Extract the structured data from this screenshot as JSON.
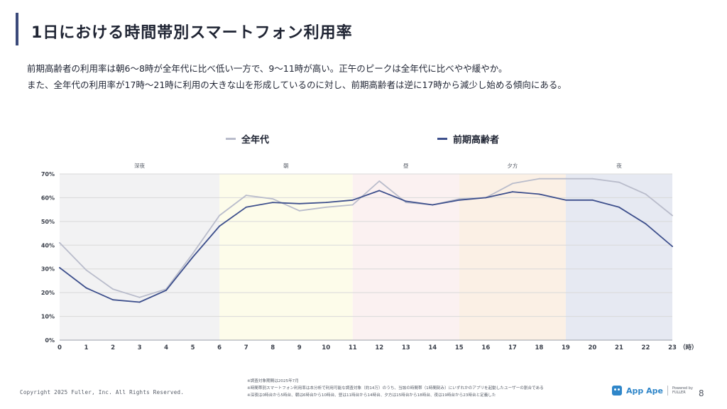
{
  "header": {
    "title": "1日における時間帯別スマートフォン利用率",
    "description_line1": "前期高齢者の利用率は朝6〜8時が全年代に比べ低い一方で、9〜11時が高い。正午のピークは全年代に比べやや緩やか。",
    "description_line2": "また、全年代の利用率が17時〜21時に利用の大きな山を形成しているのに対し、前期高齢者は逆に17時から減少し始める傾向にある。"
  },
  "colors": {
    "all_ages": "#b9bccb",
    "seniors": "#3d4f8c",
    "gridline": "#d9d9d9",
    "axis_text": "#3a3f4a"
  },
  "chart_data": {
    "type": "line",
    "title": "",
    "xlabel": "（時）",
    "ylabel": "",
    "x": [
      0,
      1,
      2,
      3,
      4,
      5,
      6,
      7,
      8,
      9,
      10,
      11,
      12,
      13,
      14,
      15,
      16,
      17,
      18,
      19,
      20,
      21,
      22,
      23
    ],
    "ylim": [
      0,
      70
    ],
    "yticks": [
      0,
      10,
      20,
      30,
      40,
      50,
      60,
      70
    ],
    "ytick_labels": [
      "0%",
      "10%",
      "20%",
      "30%",
      "40%",
      "50%",
      "60%",
      "70%"
    ],
    "legend_position": "top-center",
    "series": [
      {
        "name": "全年代",
        "color": "#b9bccb",
        "values": [
          41.0,
          29.5,
          21.5,
          18.0,
          21.5,
          36.5,
          52.5,
          61.0,
          59.5,
          54.5,
          56.0,
          57.0,
          67.0,
          58.0,
          57.0,
          59.5,
          60.0,
          66.0,
          68.0,
          68.0,
          68.0,
          66.5,
          61.5,
          52.5
        ]
      },
      {
        "name": "前期高齢者",
        "color": "#3d4f8c",
        "values": [
          30.5,
          22.0,
          17.0,
          16.0,
          21.0,
          35.0,
          48.0,
          56.0,
          58.0,
          57.5,
          58.0,
          59.0,
          63.0,
          58.5,
          57.0,
          59.0,
          60.0,
          62.5,
          61.5,
          59.0,
          59.0,
          56.0,
          49.0,
          39.5
        ]
      }
    ],
    "bands": [
      {
        "label": "深夜",
        "from": 0,
        "to": 6,
        "color": "#f2f2f3"
      },
      {
        "label": "朝",
        "from": 6,
        "to": 11,
        "color": "#fdfcea"
      },
      {
        "label": "昼",
        "from": 11,
        "to": 15,
        "color": "#fbf1f1"
      },
      {
        "label": "夕方",
        "from": 15,
        "to": 19,
        "color": "#fbf0e5"
      },
      {
        "label": "夜",
        "from": 19,
        "to": 23,
        "color": "#e6e9f2"
      }
    ]
  },
  "footer": {
    "copyright": "Copyright 2025 Fuller, Inc. All Rights Reserved.",
    "note1": "※調査対象期間は2025年7月",
    "note2": "※時間帯別スマートフォン利用率は本分析で利用可能な調査対象（約14万）のうち、当該の時間帯（1時間刻み）にいずれかのアプリを起動したユーザーの割合である",
    "note3": "※深夜は0時台から5時台、朝は6時台から10時台、昼は11時台から14時台、夕方は15時台から18時台、夜は19時台から23時台と定義した",
    "brand_name": "App Ape",
    "brand_by": "Powered by",
    "brand_company": "FULLER",
    "page_number": "8"
  }
}
